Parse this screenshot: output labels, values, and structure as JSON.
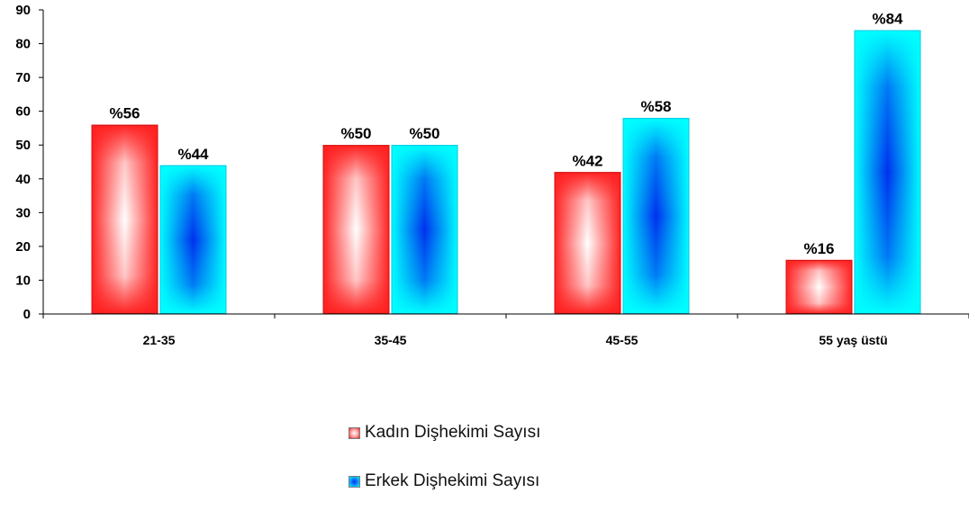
{
  "chart_data": {
    "type": "bar",
    "categories": [
      "21-35",
      "35-45",
      "45-55",
      "55 yaş üstü"
    ],
    "series": [
      {
        "name": "Kadın Dişhekimi Sayısı",
        "values": [
          56,
          50,
          42,
          16
        ],
        "labels": [
          "%56",
          "%50",
          "%42",
          "%16"
        ],
        "color": "#ff2020"
      },
      {
        "name": "Erkek Dişhekimi Sayısı",
        "values": [
          44,
          50,
          58,
          84
        ],
        "labels": [
          "%44",
          "%50",
          "%58",
          "%84"
        ],
        "color": "#00ffff"
      }
    ],
    "ylim": [
      0,
      90
    ],
    "yticks": [
      0,
      10,
      20,
      30,
      40,
      50,
      60,
      70,
      80,
      90
    ],
    "grid": false,
    "legend_position": "bottom"
  }
}
